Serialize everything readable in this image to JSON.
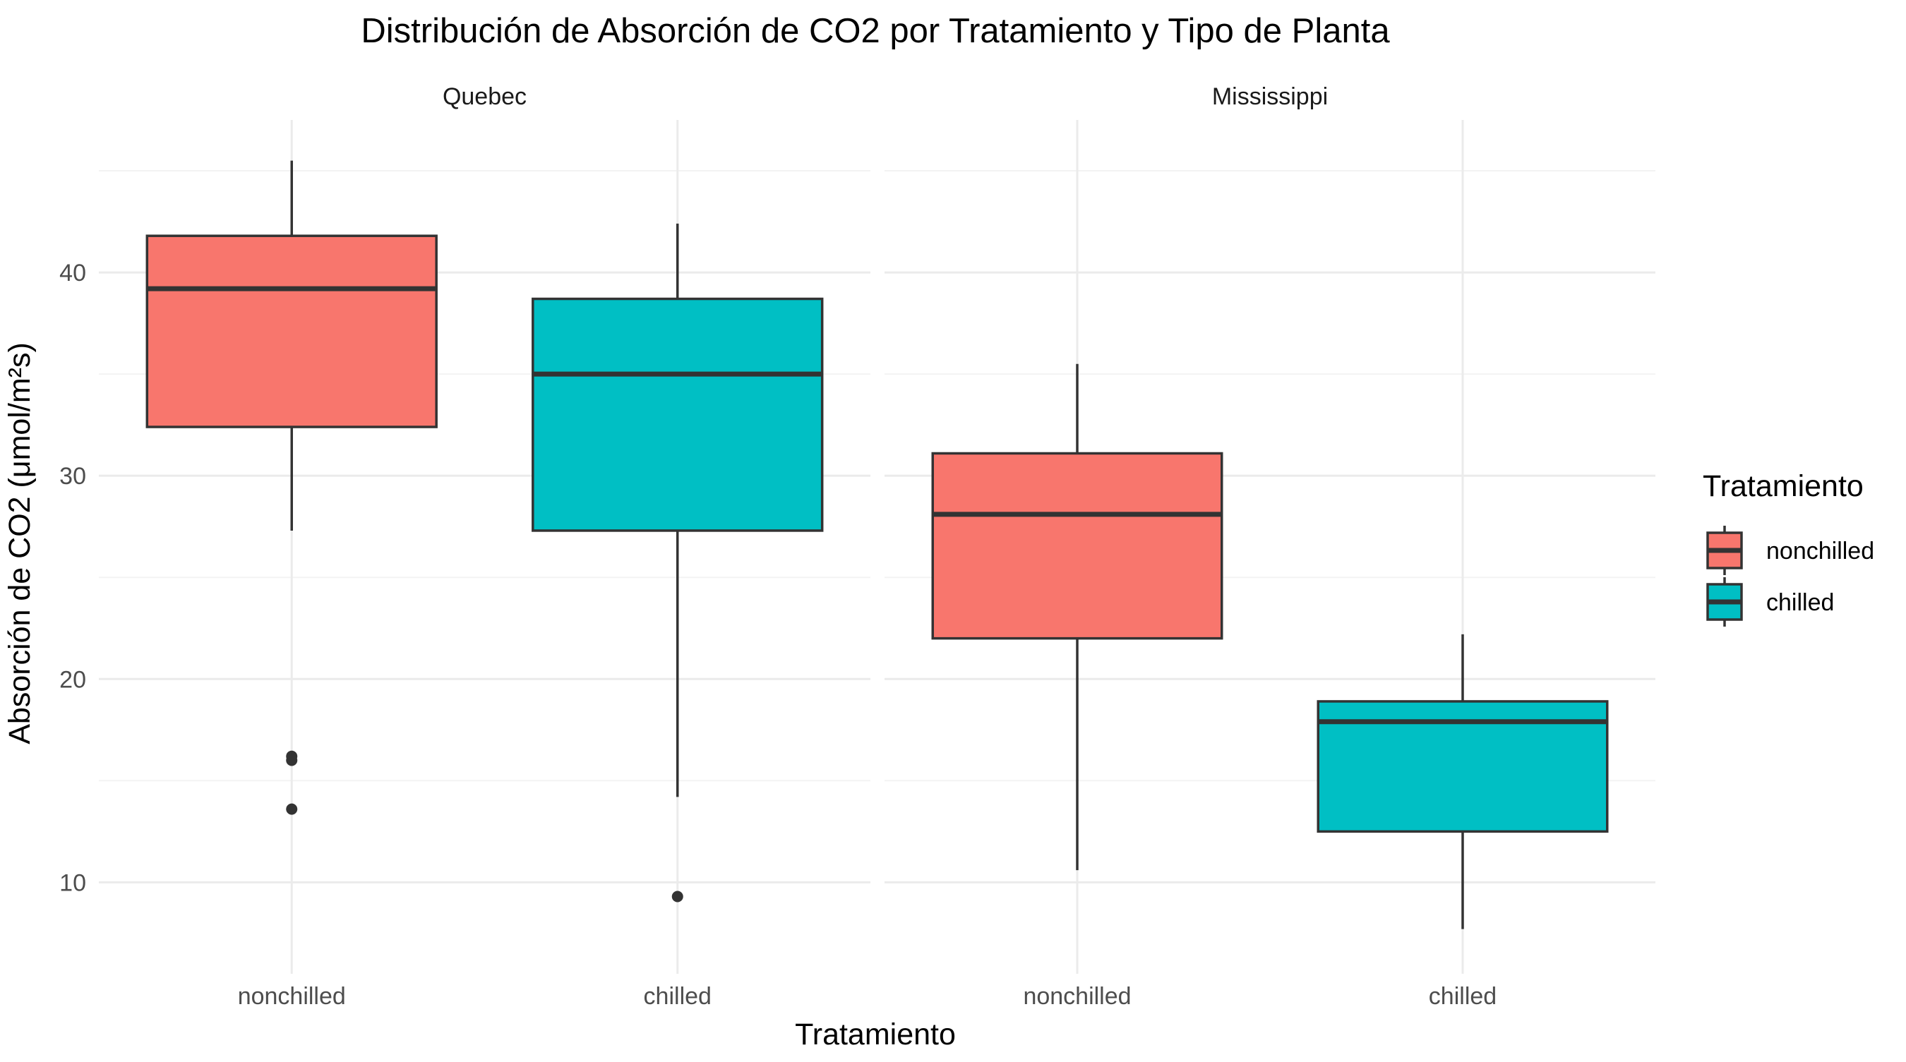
{
  "chart_data": {
    "type": "boxplot",
    "title": "Distribución de Absorción de CO2 por Tratamiento y Tipo de Planta",
    "xlabel": "Tratamiento",
    "ylabel": "Absorción de CO2 (μmol/m²s)",
    "ylim": [
      5.5,
      47.5
    ],
    "yticks": [
      10,
      20,
      30,
      40
    ],
    "grid": true,
    "legend": {
      "title": "Tratamiento",
      "position": "right",
      "entries": [
        {
          "label": "nonchilled",
          "color": "#F8766D"
        },
        {
          "label": "chilled",
          "color": "#00BFC4"
        }
      ]
    },
    "facets": [
      {
        "name": "Quebec",
        "groups": [
          {
            "category": "nonchilled",
            "color": "#F8766D",
            "min": 27.3,
            "q1": 32.4,
            "median": 39.2,
            "q3": 41.8,
            "max": 45.5,
            "outliers": [
              16.2,
              16.0,
              13.6
            ]
          },
          {
            "category": "chilled",
            "color": "#00BFC4",
            "min": 14.2,
            "q1": 27.3,
            "median": 35.0,
            "q3": 38.7,
            "max": 42.4,
            "outliers": [
              9.3
            ]
          }
        ]
      },
      {
        "name": "Mississippi",
        "groups": [
          {
            "category": "nonchilled",
            "color": "#F8766D",
            "min": 10.6,
            "q1": 22.0,
            "median": 28.1,
            "q3": 31.1,
            "max": 35.5,
            "outliers": []
          },
          {
            "category": "chilled",
            "color": "#00BFC4",
            "min": 7.7,
            "q1": 12.5,
            "median": 17.9,
            "q3": 18.9,
            "max": 22.2,
            "outliers": []
          }
        ]
      }
    ]
  }
}
